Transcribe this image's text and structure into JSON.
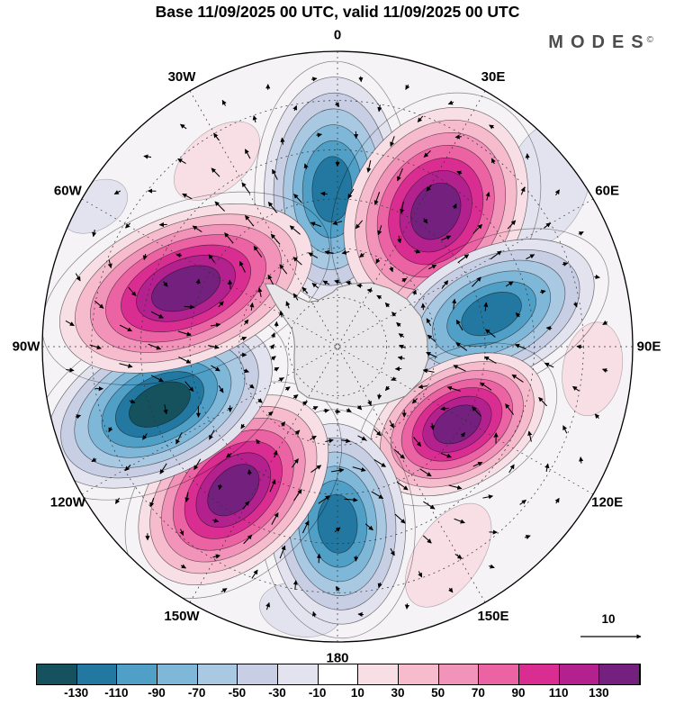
{
  "header": {
    "title": "Base 11/09/2025 00 UTC, valid 11/09/2025 00 UTC",
    "logo": "MODES",
    "logo_mark": "©"
  },
  "map": {
    "lon_labels": [
      "0",
      "30E",
      "60E",
      "90E",
      "120E",
      "150E",
      "180",
      "150W",
      "120W",
      "90W",
      "60W",
      "30W"
    ],
    "vector_scale_label": "10"
  },
  "colorbar": {
    "tick_labels": [
      "-130",
      "-110",
      "-90",
      "-70",
      "-50",
      "-30",
      "-10",
      "10",
      "30",
      "50",
      "70",
      "90",
      "110",
      "130"
    ]
  },
  "chart_data": {
    "type": "heatmap",
    "subtype": "filled-contour anomaly field with wind vectors on a south polar stereographic map",
    "title": "Base 11/09/2025 00 UTC, valid 11/09/2025 00 UTC",
    "projection": {
      "center": "South Pole",
      "edge_latitude_deg": -30,
      "lon_label_step_deg": 30,
      "latitude_rings_deg": [
        -80,
        -70,
        -60,
        -50,
        -40
      ]
    },
    "levels": [
      -130,
      -110,
      -90,
      -70,
      -50,
      -30,
      -10,
      10,
      30,
      50,
      70,
      90,
      110,
      130
    ],
    "palette": [
      "#15525e",
      "#2278a0",
      "#4f9fc6",
      "#7fb7d9",
      "#a9c8e2",
      "#c8cfe4",
      "#e3e3ef",
      "#ffffff",
      "#f8dee5",
      "#f6bccd",
      "#f293b9",
      "#ec63a4",
      "#da2d92",
      "#b2218d",
      "#73207f"
    ],
    "vector_reference": 10,
    "anomaly_centers": [
      {
        "lon": -2,
        "lat": -58,
        "peak": -120,
        "rx": 0.23,
        "ry": 0.38,
        "rot": 2,
        "depth": 6
      },
      {
        "lon": 36,
        "lat": -56,
        "peak": 140,
        "rx": 0.29,
        "ry": 0.37,
        "rot": 30,
        "depth": 7
      },
      {
        "lon": 78,
        "lat": -58,
        "peak": -120,
        "rx": 0.37,
        "ry": 0.22,
        "rot": -25,
        "depth": 6
      },
      {
        "lon": 123,
        "lat": -61,
        "peak": 140,
        "rx": 0.32,
        "ry": 0.21,
        "rot": -30,
        "depth": 7
      },
      {
        "lon": 180,
        "lat": -54,
        "peak": -120,
        "rx": 0.23,
        "ry": 0.34,
        "rot": -4,
        "depth": 6
      },
      {
        "lon": -144,
        "lat": -54,
        "peak": 140,
        "rx": 0.38,
        "ry": 0.25,
        "rot": -45,
        "depth": 7
      },
      {
        "lon": -108,
        "lat": -52,
        "peak": -140,
        "rx": 0.41,
        "ry": 0.24,
        "rot": -27,
        "depth": 7
      },
      {
        "lon": -69,
        "lat": -57,
        "peak": 140,
        "rx": 0.45,
        "ry": 0.25,
        "rot": -22,
        "depth": 7
      }
    ],
    "weak_patches": [
      {
        "lon": -33,
        "lat": -45,
        "rx": 0.17,
        "ry": 0.1,
        "rot": -40,
        "color": 8
      },
      {
        "lon": 52,
        "lat": -36,
        "rx": 0.14,
        "ry": 0.22,
        "rot": 20,
        "color": 6
      },
      {
        "lon": 95,
        "lat": -38,
        "rx": 0.1,
        "ry": 0.16,
        "rot": 10,
        "color": 8
      },
      {
        "lon": 152,
        "lat": -42,
        "rx": 0.2,
        "ry": 0.11,
        "rot": -55,
        "color": 8
      },
      {
        "lon": -172,
        "lat": -36,
        "rx": 0.14,
        "ry": 0.09,
        "rot": 10,
        "color": 6
      },
      {
        "lon": 8,
        "lat": -79,
        "rx": 0.07,
        "ry": 0.05,
        "rot": 0,
        "color": 8
      },
      {
        "lon": -60,
        "lat": -33,
        "rx": 0.12,
        "ry": 0.08,
        "rot": -30,
        "color": 6
      }
    ],
    "coastline": [
      [
        0,
        0.2
      ],
      [
        14,
        0.22
      ],
      [
        28,
        0.245
      ],
      [
        42,
        0.265
      ],
      [
        56,
        0.285
      ],
      [
        70,
        0.3
      ],
      [
        84,
        0.305
      ],
      [
        98,
        0.31
      ],
      [
        112,
        0.305
      ],
      [
        126,
        0.285
      ],
      [
        138,
        0.255
      ],
      [
        150,
        0.23
      ],
      [
        162,
        0.215
      ],
      [
        174,
        0.2
      ],
      [
        186,
        0.19
      ],
      [
        198,
        0.19
      ],
      [
        210,
        0.2
      ],
      [
        222,
        0.2
      ],
      [
        234,
        0.18
      ],
      [
        246,
        0.16
      ],
      [
        258,
        0.15
      ],
      [
        270,
        0.145
      ],
      [
        281,
        0.15
      ],
      [
        291,
        0.165
      ],
      [
        299,
        0.21
      ],
      [
        306,
        0.27
      ],
      [
        311,
        0.325
      ],
      [
        315,
        0.3
      ],
      [
        320,
        0.225
      ],
      [
        327,
        0.18
      ],
      [
        336,
        0.17
      ],
      [
        346,
        0.175
      ],
      [
        355,
        0.185
      ]
    ]
  }
}
